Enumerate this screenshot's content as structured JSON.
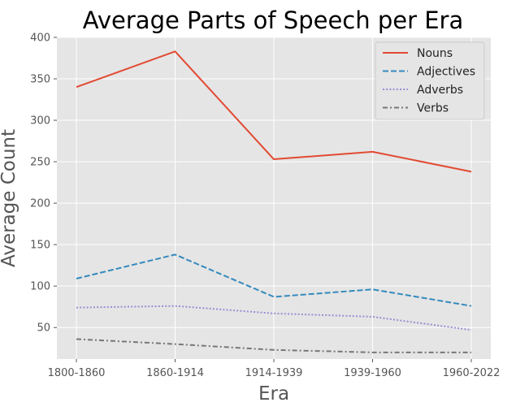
{
  "chart_data": {
    "type": "line",
    "title": "Average Parts of Speech per Era",
    "xlabel": "Era",
    "ylabel": "Average Count",
    "categories": [
      "1800-1860",
      "1860-1914",
      "1914-1939",
      "1939-1960",
      "1960-2022"
    ],
    "ylim": [
      12,
      400
    ],
    "yticks": [
      50,
      100,
      150,
      200,
      250,
      300,
      350,
      400
    ],
    "grid": true,
    "legend_position": "top-right",
    "series": [
      {
        "name": "Nouns",
        "values": [
          340,
          383,
          253,
          262,
          238
        ],
        "color": "#E24A33",
        "dash": "solid"
      },
      {
        "name": "Adjectives",
        "values": [
          109,
          138,
          87,
          96,
          76
        ],
        "color": "#348ABD",
        "dash": "dashed"
      },
      {
        "name": "Adverbs",
        "values": [
          74,
          76,
          67,
          63,
          47
        ],
        "color": "#988ED5",
        "dash": "dotted"
      },
      {
        "name": "Verbs",
        "values": [
          36,
          30,
          23,
          20,
          20
        ],
        "color": "#777777",
        "dash": "dashdot"
      }
    ]
  }
}
